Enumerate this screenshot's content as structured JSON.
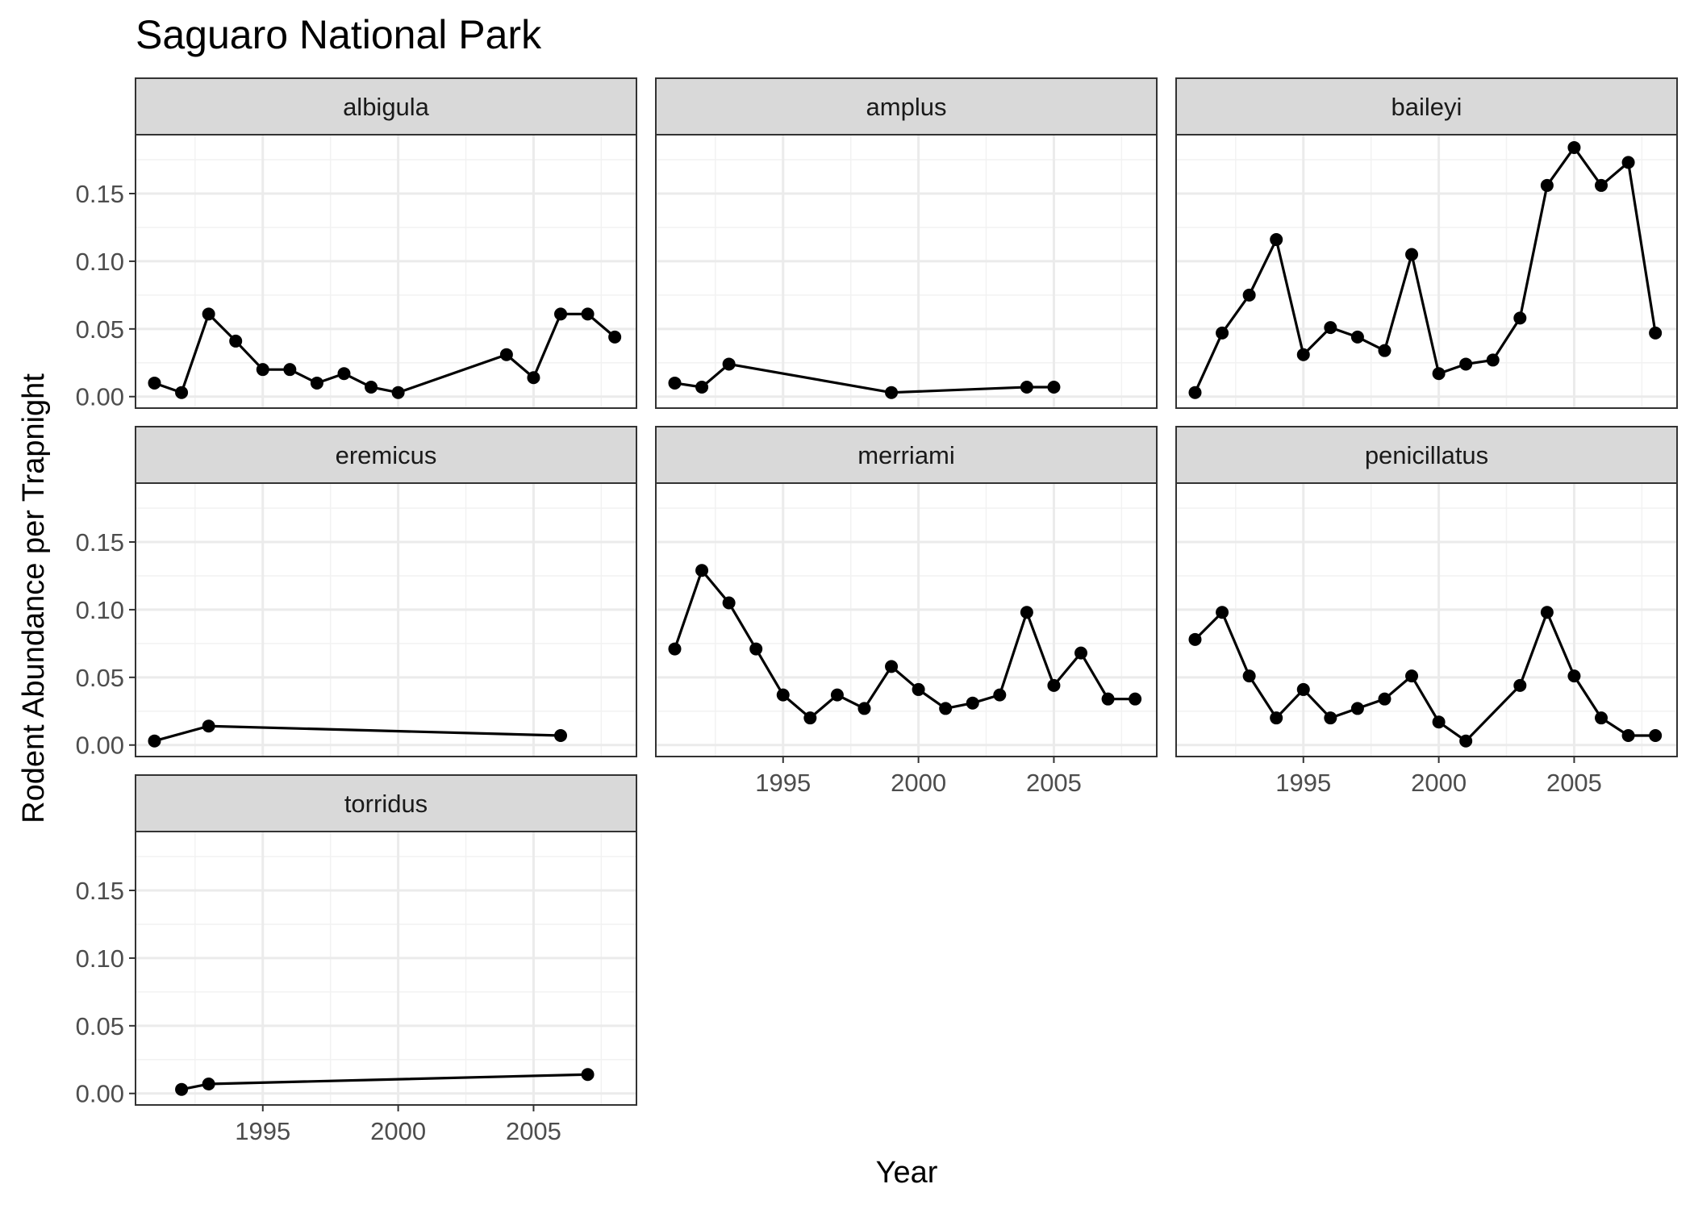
{
  "chart_data": {
    "type": "line",
    "title": "Saguaro National Park",
    "xlabel": "Year",
    "ylabel": "Rodent Abundance per Trapnight",
    "xlim": [
      1990.3,
      2008.8
    ],
    "ylim": [
      -0.0085,
      0.1935
    ],
    "x_ticks": [
      1995,
      2000,
      2005
    ],
    "x_tick_labels": [
      "1995",
      "2000",
      "2005"
    ],
    "y_ticks": [
      0,
      0.05,
      0.1,
      0.15
    ],
    "y_tick_labels": [
      "0.00",
      "0.05",
      "0.10",
      "0.15"
    ],
    "grid": true,
    "legend": "none",
    "marker": "circle",
    "series_color": "#000000",
    "panels": [
      {
        "name": "albigula",
        "x": [
          1991,
          1992,
          1993,
          1994,
          1995,
          1996,
          1997,
          1998,
          1999,
          2000,
          2004,
          2005,
          2006,
          2007,
          2008
        ],
        "y": [
          0.01,
          0.003,
          0.061,
          0.041,
          0.02,
          0.02,
          0.01,
          0.017,
          0.007,
          0.003,
          0.031,
          0.014,
          0.061,
          0.061,
          0.044
        ]
      },
      {
        "name": "amplus",
        "x": [
          1991,
          1992,
          1993,
          1999,
          2004,
          2005
        ],
        "y": [
          0.01,
          0.007,
          0.024,
          0.003,
          0.007,
          0.007
        ]
      },
      {
        "name": "baileyi",
        "x": [
          1991,
          1992,
          1993,
          1994,
          1995,
          1996,
          1997,
          1998,
          1999,
          2000,
          2001,
          2002,
          2003,
          2004,
          2005,
          2006,
          2007,
          2008
        ],
        "y": [
          0.003,
          0.047,
          0.075,
          0.116,
          0.031,
          0.051,
          0.044,
          0.034,
          0.105,
          0.017,
          0.024,
          0.027,
          0.058,
          0.156,
          0.184,
          0.156,
          0.173,
          0.047
        ]
      },
      {
        "name": "eremicus",
        "x": [
          1991,
          1993,
          2006
        ],
        "y": [
          0.003,
          0.014,
          0.007
        ]
      },
      {
        "name": "merriami",
        "x": [
          1991,
          1992,
          1993,
          1994,
          1995,
          1996,
          1997,
          1998,
          1999,
          2000,
          2001,
          2002,
          2003,
          2004,
          2005,
          2006,
          2007,
          2008
        ],
        "y": [
          0.071,
          0.129,
          0.105,
          0.071,
          0.037,
          0.02,
          0.037,
          0.027,
          0.058,
          0.041,
          0.027,
          0.031,
          0.037,
          0.098,
          0.044,
          0.068,
          0.034,
          0.034
        ]
      },
      {
        "name": "penicillatus",
        "x": [
          1991,
          1992,
          1993,
          1994,
          1995,
          1996,
          1997,
          1998,
          1999,
          2000,
          2001,
          2003,
          2004,
          2005,
          2006,
          2007,
          2008
        ],
        "y": [
          0.078,
          0.098,
          0.051,
          0.02,
          0.041,
          0.02,
          0.027,
          0.034,
          0.051,
          0.017,
          0.003,
          0.044,
          0.098,
          0.051,
          0.02,
          0.007,
          0.007
        ]
      },
      {
        "name": "torridus",
        "x": [
          1992,
          1993,
          2007
        ],
        "y": [
          0.003,
          0.007,
          0.014
        ]
      }
    ]
  }
}
